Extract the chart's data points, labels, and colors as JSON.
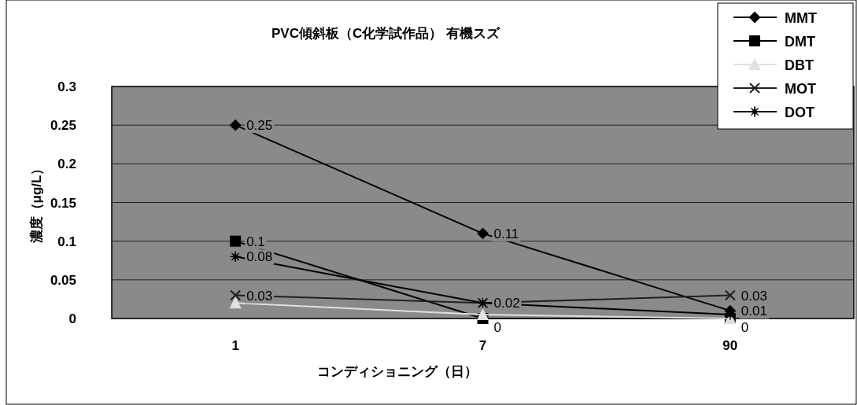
{
  "chart_data": {
    "type": "line",
    "title": "PVC傾斜板（C化学試作品） 有機スズ",
    "xlabel": "コンディショニング（日）",
    "ylabel": "濃度（μg/L）",
    "categories": [
      "1",
      "7",
      "90"
    ],
    "ylim": [
      0,
      0.3
    ],
    "yticks": [
      0,
      0.05,
      0.1,
      0.15,
      0.2,
      0.25,
      0.3
    ],
    "grid": "y",
    "legend": "top right",
    "series": [
      {
        "name": "MMT",
        "color": "#000000",
        "marker": "diamond",
        "values": [
          0.25,
          0.11,
          0.01
        ],
        "value_labels": [
          "0.25",
          "0.11",
          "0.01"
        ]
      },
      {
        "name": "DMT",
        "color": "#000000",
        "marker": "square",
        "values": [
          0.1,
          0,
          0
        ],
        "value_labels": [
          "0.1",
          "0",
          "0"
        ]
      },
      {
        "name": "DBT",
        "color": "#e0e0e0",
        "marker": "triangle",
        "values": [
          0.02,
          0.005,
          0
        ],
        "value_labels": [
          null,
          null,
          null
        ]
      },
      {
        "name": "MOT",
        "color": "#202020",
        "marker": "cross",
        "values": [
          0.03,
          0.02,
          0.03
        ],
        "value_labels": [
          "0.03",
          null,
          "0.03"
        ]
      },
      {
        "name": "DOT",
        "color": "#000000",
        "marker": "star",
        "values": [
          0.08,
          0.02,
          0.005
        ],
        "value_labels": [
          "0.08",
          "0.02",
          null
        ]
      }
    ]
  }
}
